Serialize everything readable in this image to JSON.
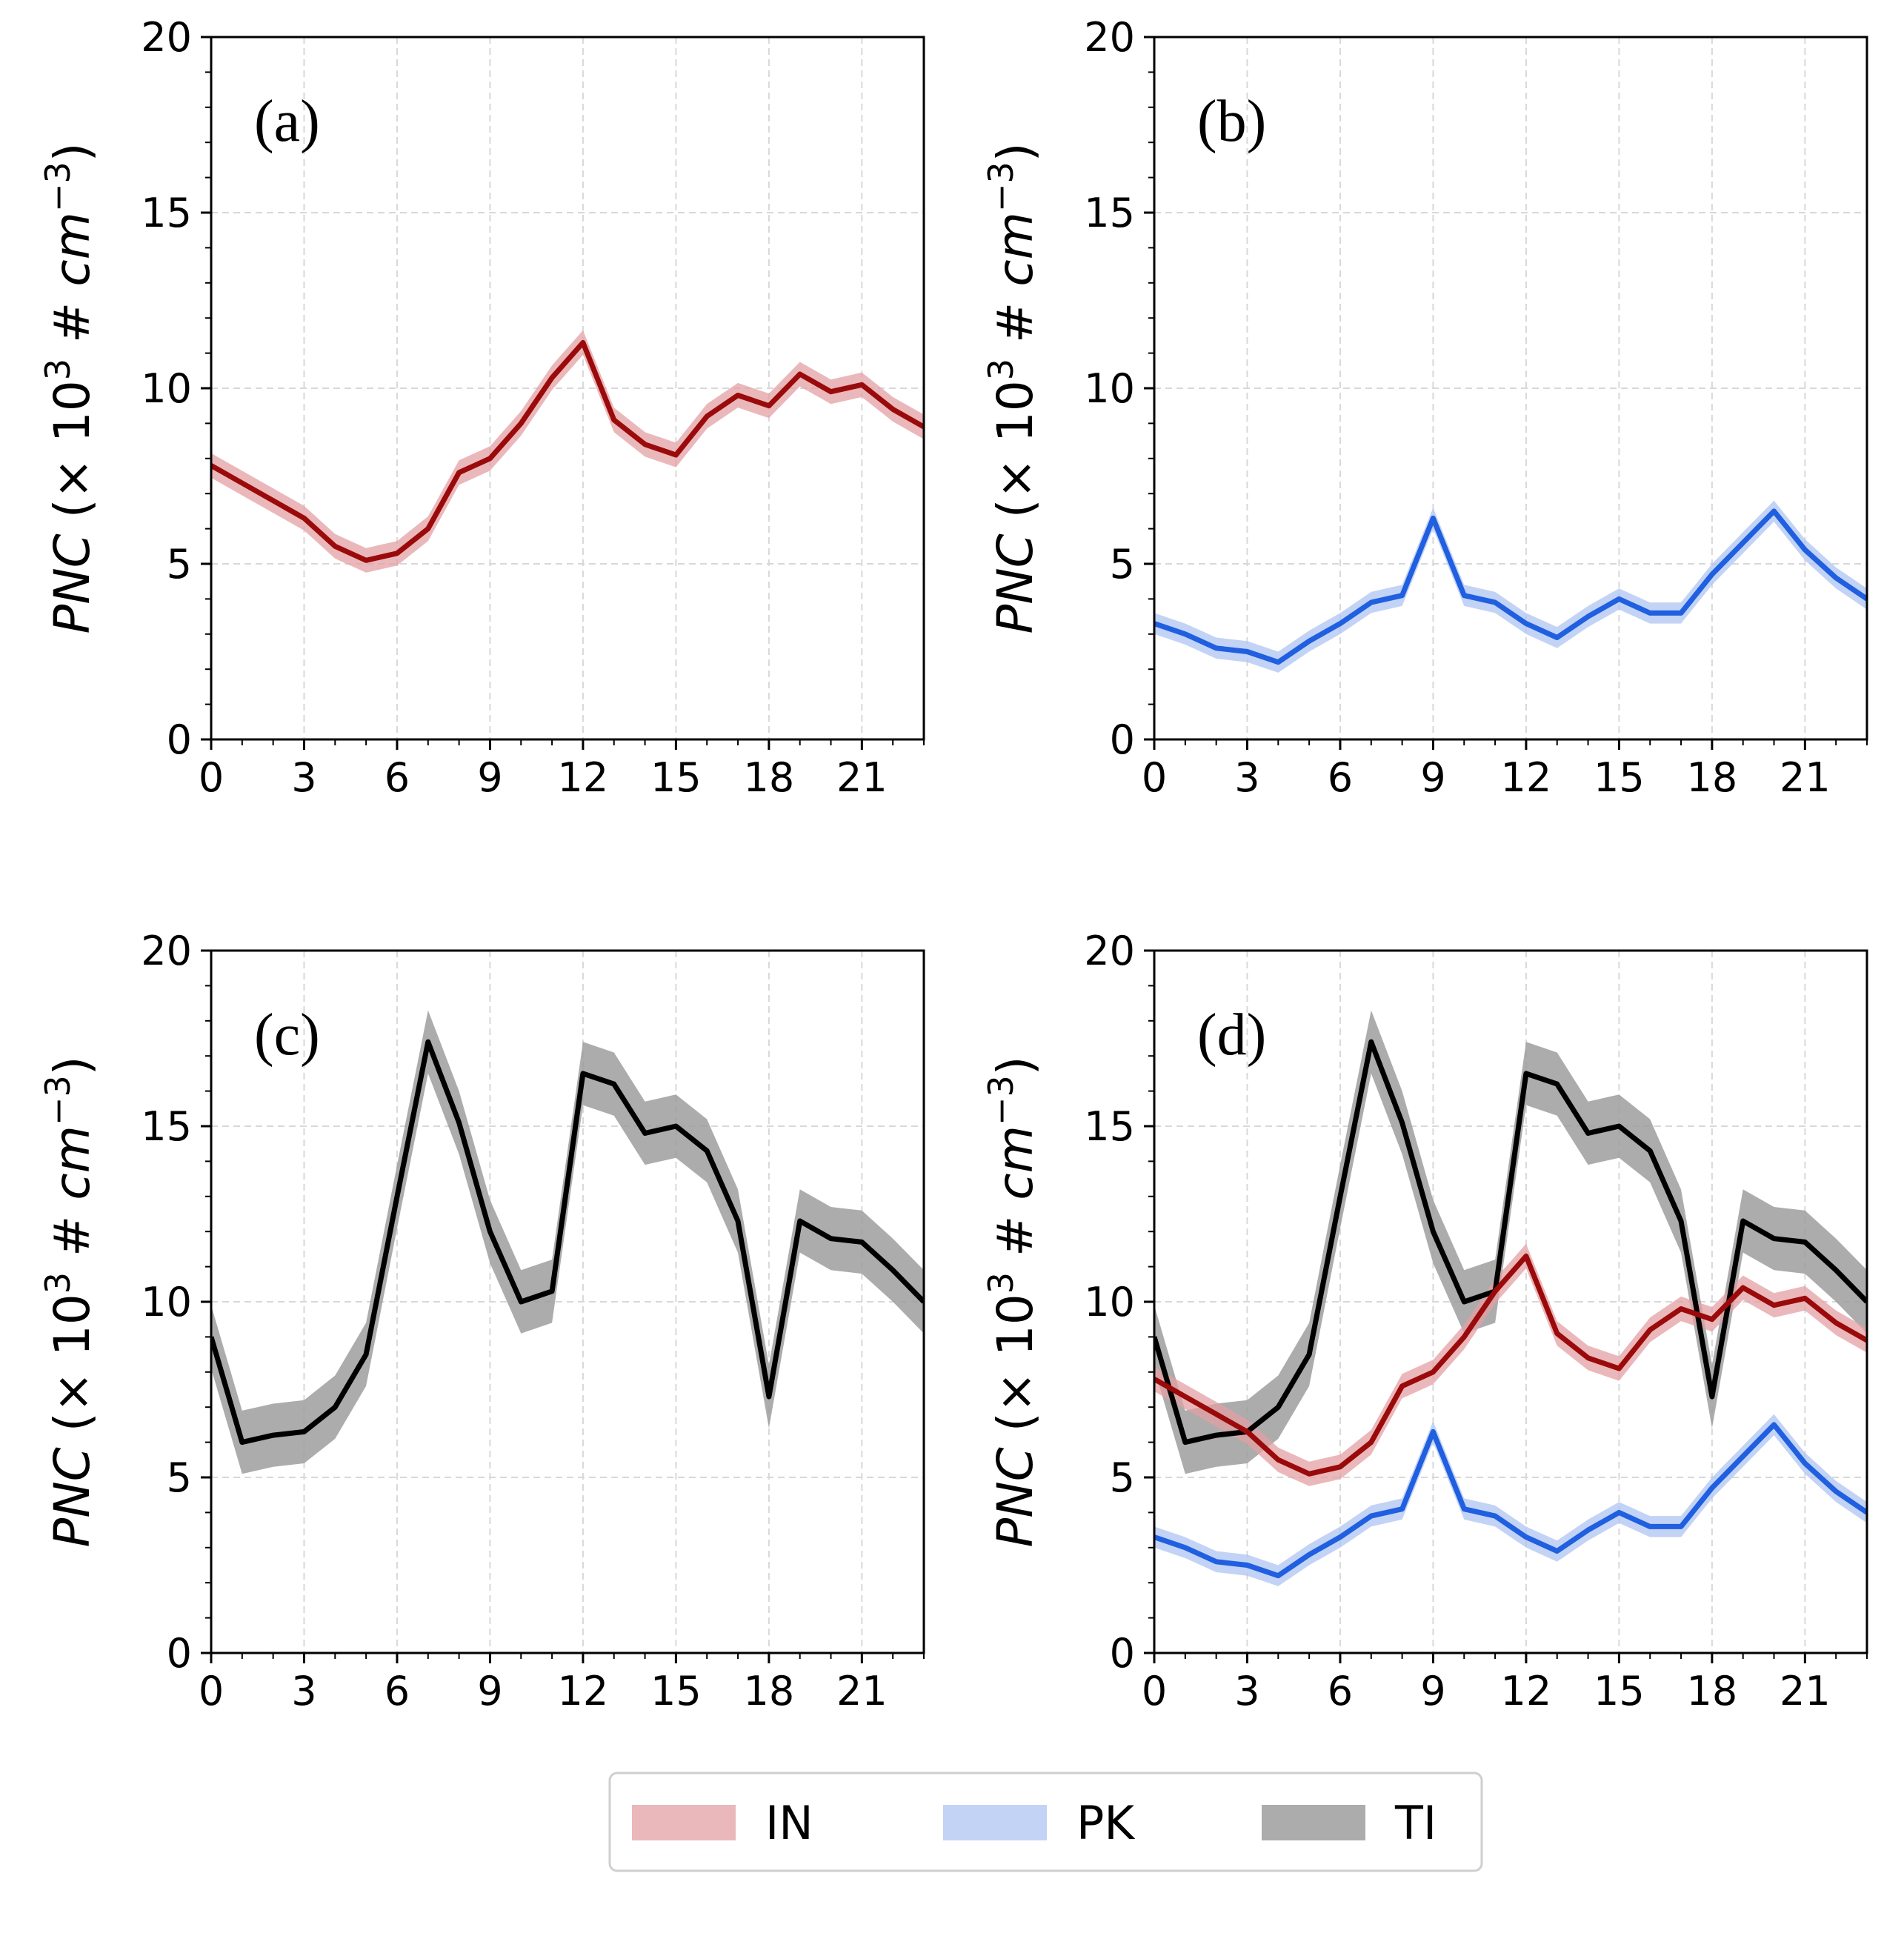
{
  "colors": {
    "IN": "#9b0a0a",
    "PK": "#1f5fe0",
    "TI": "#000000",
    "IN_band": "#e3a0a4",
    "PK_band": "#aec4f2",
    "TI_band": "#9e9e9e"
  },
  "ylabel": {
    "var": "PNC",
    "open": " (× 10",
    "exp": "3",
    "middle": " # ",
    "unit": "cm",
    "unit_exp": "−3",
    "close": ")"
  },
  "legend": [
    {
      "key": "IN",
      "label": "IN"
    },
    {
      "key": "PK",
      "label": "PK"
    },
    {
      "key": "TI",
      "label": "TI"
    }
  ],
  "chart_data": [
    {
      "type": "line",
      "panel_label": "(a)",
      "xlabel": "",
      "ylabel": "PNC (× 10^3 # cm^-3)",
      "xlim": [
        0,
        23
      ],
      "ylim": [
        0,
        20
      ],
      "xticks": [
        0,
        3,
        6,
        9,
        12,
        15,
        18,
        21
      ],
      "yticks": [
        0,
        5,
        10,
        15,
        20
      ],
      "grid": true,
      "series": [
        {
          "name": "IN",
          "key": "IN",
          "values": [
            7.8,
            7.3,
            6.8,
            6.3,
            5.5,
            5.1,
            5.3,
            6.0,
            7.6,
            8.0,
            9.0,
            10.3,
            11.3,
            9.1,
            8.4,
            8.1,
            9.2,
            9.8,
            9.5,
            10.4,
            9.9,
            10.1,
            9.4,
            8.9
          ],
          "band": 0.35
        }
      ]
    },
    {
      "type": "line",
      "panel_label": "(b)",
      "xlabel": "",
      "ylabel": "PNC (× 10^3 # cm^-3)",
      "xlim": [
        0,
        23
      ],
      "ylim": [
        0,
        20
      ],
      "xticks": [
        0,
        3,
        6,
        9,
        12,
        15,
        18,
        21
      ],
      "yticks": [
        0,
        5,
        10,
        15,
        20
      ],
      "grid": true,
      "series": [
        {
          "name": "PK",
          "key": "PK",
          "values": [
            3.3,
            3.0,
            2.6,
            2.5,
            2.2,
            2.8,
            3.3,
            3.9,
            4.1,
            6.3,
            4.1,
            3.9,
            3.3,
            2.9,
            3.5,
            4.0,
            3.6,
            3.6,
            4.7,
            5.6,
            6.5,
            5.4,
            4.6,
            4.0
          ],
          "band": 0.3
        }
      ]
    },
    {
      "type": "line",
      "panel_label": "(c)",
      "xlabel": "",
      "ylabel": "PNC (× 10^3 # cm^-3)",
      "xlim": [
        0,
        23
      ],
      "ylim": [
        0,
        20
      ],
      "xticks": [
        0,
        3,
        6,
        9,
        12,
        15,
        18,
        21
      ],
      "yticks": [
        0,
        5,
        10,
        15,
        20
      ],
      "grid": true,
      "series": [
        {
          "name": "TI",
          "key": "TI",
          "values": [
            9.0,
            6.0,
            6.2,
            6.3,
            7.0,
            8.5,
            13.0,
            17.4,
            15.1,
            12.0,
            10.0,
            10.3,
            16.5,
            16.2,
            14.8,
            15.0,
            14.3,
            12.3,
            7.3,
            12.3,
            11.8,
            11.7,
            10.9,
            10.0
          ],
          "band": 0.9
        }
      ]
    },
    {
      "type": "line",
      "panel_label": "(d)",
      "xlabel": "",
      "ylabel": "PNC (× 10^3 # cm^-3)",
      "xlim": [
        0,
        23
      ],
      "ylim": [
        0,
        20
      ],
      "xticks": [
        0,
        3,
        6,
        9,
        12,
        15,
        18,
        21
      ],
      "yticks": [
        0,
        5,
        10,
        15,
        20
      ],
      "grid": true,
      "series": [
        {
          "name": "TI",
          "key": "TI",
          "values": [
            9.0,
            6.0,
            6.2,
            6.3,
            7.0,
            8.5,
            13.0,
            17.4,
            15.1,
            12.0,
            10.0,
            10.3,
            16.5,
            16.2,
            14.8,
            15.0,
            14.3,
            12.3,
            7.3,
            12.3,
            11.8,
            11.7,
            10.9,
            10.0
          ],
          "band": 0.9
        },
        {
          "name": "IN",
          "key": "IN",
          "values": [
            7.8,
            7.3,
            6.8,
            6.3,
            5.5,
            5.1,
            5.3,
            6.0,
            7.6,
            8.0,
            9.0,
            10.3,
            11.3,
            9.1,
            8.4,
            8.1,
            9.2,
            9.8,
            9.5,
            10.4,
            9.9,
            10.1,
            9.4,
            8.9
          ],
          "band": 0.35
        },
        {
          "name": "PK",
          "key": "PK",
          "values": [
            3.3,
            3.0,
            2.6,
            2.5,
            2.2,
            2.8,
            3.3,
            3.9,
            4.1,
            6.3,
            4.1,
            3.9,
            3.3,
            2.9,
            3.5,
            4.0,
            3.6,
            3.6,
            4.7,
            5.6,
            6.5,
            5.4,
            4.6,
            4.0
          ],
          "band": 0.3
        }
      ]
    }
  ]
}
